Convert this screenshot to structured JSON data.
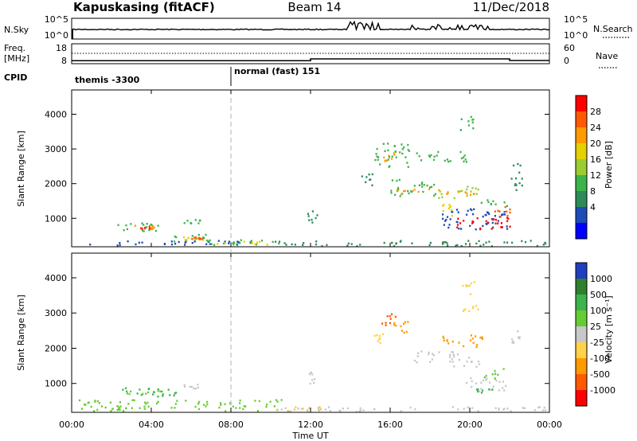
{
  "chart_data": {
    "type": "heatmap",
    "header": {
      "station": "Kapuskasing (fitACF)",
      "beam": "Beam 14",
      "date": "11/Dec/2018"
    },
    "x_axis": {
      "label": "Time UT",
      "ticks": [
        "00:00",
        "04:00",
        "08:00",
        "12:00",
        "16:00",
        "20:00",
        "00:00"
      ],
      "range_hours": [
        0,
        24
      ]
    },
    "strips": {
      "nsky": {
        "label": "N.Sky",
        "right_label": "N.Search",
        "left_ticks": [
          "10^5",
          "10^0"
        ],
        "right_ticks": [
          "10^5",
          "10^0"
        ]
      },
      "freq": {
        "label": "Freq.",
        "unit": "[MHz]",
        "right_label": "Nave",
        "left_ticks": [
          "18",
          "8"
        ],
        "right_ticks": [
          "60",
          "0"
        ],
        "freq_steps": [
          [
            0,
            9.5
          ],
          [
            12,
            10.4
          ],
          [
            22,
            9.6
          ]
        ]
      },
      "cpid": {
        "label": "CPID",
        "segments": [
          {
            "start_hours": 0,
            "text": "themis -3300"
          },
          {
            "start_hours": 8,
            "text": "normal (fast) 151"
          }
        ]
      }
    },
    "panels": [
      {
        "id": "power",
        "ylabel": "Slant Range [km]",
        "y_ticks": [
          "1000",
          "2000",
          "3000",
          "4000"
        ],
        "ylim_km": [
          180,
          4700
        ],
        "colorbar": {
          "label": "Power [dB]",
          "labels": [
            "28",
            "24",
            "20",
            "16",
            "12",
            "8",
            "4"
          ],
          "colors": [
            "#ff0000",
            "#ff5a00",
            "#ff9a00",
            "#e6d000",
            "#9acd32",
            "#3cb44b",
            "#2e8b57",
            "#1e4db7",
            "#0000ff"
          ]
        },
        "blobs": [
          {
            "t": [
              2.2,
              4.4
            ],
            "r": [
              650,
              950
            ],
            "c": "#3cb44b"
          },
          {
            "t": [
              3.0,
              4.2
            ],
            "r": [
              700,
              820
            ],
            "c": "#ff9a00"
          },
          {
            "t": [
              3.4,
              3.9
            ],
            "r": [
              720,
              790
            ],
            "c": "#ff3000"
          },
          {
            "t": [
              5.0,
              7.2
            ],
            "r": [
              350,
              560
            ],
            "c": "#3cb44b"
          },
          {
            "t": [
              5.6,
              6.7
            ],
            "r": [
              400,
              500
            ],
            "c": "#e6d000"
          },
          {
            "t": [
              6.0,
              6.5
            ],
            "r": [
              420,
              480
            ],
            "c": "#ff5a00"
          },
          {
            "t": [
              0.5,
              9.5
            ],
            "r": [
              240,
              380
            ],
            "c": "#1e4db7"
          },
          {
            "t": [
              6.5,
              10.5
            ],
            "r": [
              250,
              420
            ],
            "c": "#3cb44b"
          },
          {
            "t": [
              7.0,
              9.8
            ],
            "r": [
              260,
              360
            ],
            "c": "#e6d000"
          },
          {
            "t": [
              10.0,
              24.0
            ],
            "r": [
              220,
              380
            ],
            "c": "#2e8b57"
          },
          {
            "t": [
              11.8,
              12.3
            ],
            "r": [
              900,
              1300
            ],
            "c": "#2e8b57"
          },
          {
            "t": [
              5.5,
              6.5
            ],
            "r": [
              880,
              1000
            ],
            "c": "#3cb44b"
          },
          {
            "t": [
              15.6,
              16.4
            ],
            "r": [
              2600,
              2950
            ],
            "c": "#ff9a00"
          },
          {
            "t": [
              15.2,
              17.0
            ],
            "r": [
              2500,
              3200
            ],
            "c": "#3cb44b"
          },
          {
            "t": [
              16.0,
              18.3
            ],
            "r": [
              1650,
              2150
            ],
            "c": "#3cb44b"
          },
          {
            "t": [
              16.3,
              18.5
            ],
            "r": [
              1720,
              1900
            ],
            "c": "#ff9a00"
          },
          {
            "t": [
              18.4,
              20.5
            ],
            "r": [
              1600,
              1950
            ],
            "c": "#9acd32"
          },
          {
            "t": [
              18.8,
              20.2
            ],
            "r": [
              1700,
              1820
            ],
            "c": "#ff9a00"
          },
          {
            "t": [
              17.2,
              20.0
            ],
            "r": [
              2650,
              2950
            ],
            "c": "#3cb44b"
          },
          {
            "t": [
              18.6,
              22.0
            ],
            "r": [
              700,
              1300
            ],
            "c": "#1e4db7"
          },
          {
            "t": [
              19.2,
              22.0
            ],
            "r": [
              700,
              1050
            ],
            "c": "#ff0000"
          },
          {
            "t": [
              21.0,
              22.0
            ],
            "r": [
              1050,
              1400
            ],
            "c": "#ff5a00"
          },
          {
            "t": [
              20.5,
              22.0
            ],
            "r": [
              1350,
              1600
            ],
            "c": "#3cb44b"
          },
          {
            "t": [
              18.5,
              19.5
            ],
            "r": [
              1100,
              1450
            ],
            "c": "#e6d000"
          },
          {
            "t": [
              22.0,
              22.6
            ],
            "r": [
              1800,
              2650
            ],
            "c": "#2e8b57"
          },
          {
            "t": [
              14.5,
              15.2
            ],
            "r": [
              1900,
              2300
            ],
            "c": "#2e8b57"
          },
          {
            "t": [
              19.5,
              20.2
            ],
            "r": [
              3500,
              4050
            ],
            "c": "#3cb44b"
          }
        ]
      },
      {
        "id": "velocity",
        "ylabel": "Slant Range [km]",
        "y_ticks": [
          "1000",
          "2000",
          "3000",
          "4000"
        ],
        "ylim_km": [
          180,
          4700
        ],
        "colorbar": {
          "label": "Velocity [m s⁻¹]",
          "unit_label": "[m s⁻¹]",
          "labels": [
            "1000",
            "500",
            "100",
            "25",
            "-25",
            "-100",
            "-500",
            "-1000"
          ],
          "colors": [
            "#1e3fbf",
            "#2f7f2f",
            "#3cb44b",
            "#66cc33",
            "#c8c8c8",
            "#ffd24a",
            "#ff9a00",
            "#ff5a00",
            "#ff0000"
          ]
        },
        "blobs": [
          {
            "t": [
              2.2,
              5.5
            ],
            "r": [
              650,
              900
            ],
            "c": "#3cb44b"
          },
          {
            "t": [
              2.5,
              4.5
            ],
            "r": [
              700,
              820
            ],
            "c": "#66cc33"
          },
          {
            "t": [
              5.6,
              6.6
            ],
            "r": [
              880,
              1000
            ],
            "c": "#c8c8c8"
          },
          {
            "t": [
              0.3,
              10.5
            ],
            "r": [
              240,
              560
            ],
            "c": "#66cc33"
          },
          {
            "t": [
              10.5,
              24.0
            ],
            "r": [
              220,
              360
            ],
            "c": "#c8c8c8"
          },
          {
            "t": [
              10.0,
              13.0
            ],
            "r": [
              240,
              380
            ],
            "c": "#e6c864"
          },
          {
            "t": [
              11.8,
              12.2
            ],
            "r": [
              950,
              1350
            ],
            "c": "#c8c8c8"
          },
          {
            "t": [
              15.4,
              16.3
            ],
            "r": [
              2600,
              3000
            ],
            "c": "#ff5a00"
          },
          {
            "t": [
              16.0,
              17.0
            ],
            "r": [
              2400,
              2800
            ],
            "c": "#ff9a00"
          },
          {
            "t": [
              17.0,
              19.4
            ],
            "r": [
              1600,
              1950
            ],
            "c": "#c8c8c8"
          },
          {
            "t": [
              19.0,
              20.5
            ],
            "r": [
              1500,
              1800
            ],
            "c": "#c8c8c8"
          },
          {
            "t": [
              18.6,
              20.6
            ],
            "r": [
              2000,
              2400
            ],
            "c": "#ff9a00"
          },
          {
            "t": [
              19.6,
              20.4
            ],
            "r": [
              3050,
              3250
            ],
            "c": "#ffd24a"
          },
          {
            "t": [
              19.8,
              22.0
            ],
            "r": [
              800,
              1200
            ],
            "c": "#c8c8c8"
          },
          {
            "t": [
              20.7,
              21.8
            ],
            "r": [
              1150,
              1450
            ],
            "c": "#66cc33"
          },
          {
            "t": [
              20.0,
              21.3
            ],
            "r": [
              760,
              880
            ],
            "c": "#3cb44b"
          },
          {
            "t": [
              21.8,
              22.5
            ],
            "r": [
              2100,
              2550
            ],
            "c": "#c8c8c8"
          },
          {
            "t": [
              19.6,
              20.2
            ],
            "r": [
              3550,
              3950
            ],
            "c": "#ffd24a"
          },
          {
            "t": [
              15.0,
              15.6
            ],
            "r": [
              2150,
              2450
            ],
            "c": "#ffd24a"
          }
        ]
      }
    ]
  }
}
